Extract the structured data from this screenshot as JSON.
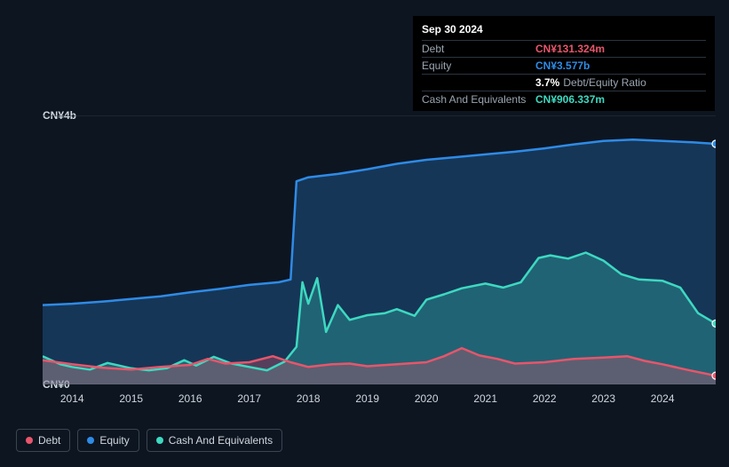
{
  "tooltip": {
    "date": "Sep 30 2024",
    "rows": [
      {
        "label": "Debt",
        "value": "CN¥131.324m",
        "color": "#e8556b"
      },
      {
        "label": "Equity",
        "value": "CN¥3.577b",
        "color": "#2e8be6"
      },
      {
        "label": "",
        "value": "3.7%",
        "note": "Debt/Equity Ratio",
        "color": "#ffffff"
      },
      {
        "label": "Cash And Equivalents",
        "value": "CN¥906.337m",
        "color": "#3dd9c1"
      }
    ]
  },
  "chart": {
    "type": "area",
    "background": "#0d1521",
    "grid_color": "#2a3540",
    "label_color": "#cfd6dd",
    "label_fontsize": 12,
    "y_labels": [
      {
        "text": "CN¥4b",
        "value": 4000
      },
      {
        "text": "CN¥0",
        "value": 0
      }
    ],
    "ylim": [
      0,
      4000
    ],
    "x_years": [
      2014,
      2015,
      2016,
      2017,
      2018,
      2019,
      2020,
      2021,
      2022,
      2023,
      2024
    ],
    "x_range": [
      2013.5,
      2024.9
    ],
    "series": [
      {
        "name": "Equity",
        "color": "#2e8be6",
        "fill": "rgba(46,139,230,0.28)",
        "line_width": 2.5,
        "points": [
          [
            2013.5,
            1180
          ],
          [
            2014,
            1200
          ],
          [
            2014.5,
            1230
          ],
          [
            2015,
            1270
          ],
          [
            2015.5,
            1310
          ],
          [
            2016,
            1370
          ],
          [
            2016.5,
            1420
          ],
          [
            2017,
            1480
          ],
          [
            2017.5,
            1520
          ],
          [
            2017.7,
            1560
          ],
          [
            2017.8,
            3020
          ],
          [
            2018,
            3080
          ],
          [
            2018.5,
            3130
          ],
          [
            2019,
            3200
          ],
          [
            2019.5,
            3280
          ],
          [
            2020,
            3340
          ],
          [
            2020.5,
            3380
          ],
          [
            2021,
            3420
          ],
          [
            2021.5,
            3460
          ],
          [
            2022,
            3510
          ],
          [
            2022.5,
            3570
          ],
          [
            2023,
            3620
          ],
          [
            2023.5,
            3640
          ],
          [
            2024,
            3620
          ],
          [
            2024.5,
            3600
          ],
          [
            2024.9,
            3577
          ]
        ]
      },
      {
        "name": "Cash And Equivalents",
        "color": "#3dd9c1",
        "fill": "rgba(61,217,193,0.28)",
        "line_width": 2.5,
        "points": [
          [
            2013.5,
            420
          ],
          [
            2013.8,
            300
          ],
          [
            2014,
            260
          ],
          [
            2014.3,
            220
          ],
          [
            2014.6,
            320
          ],
          [
            2015,
            240
          ],
          [
            2015.3,
            210
          ],
          [
            2015.6,
            240
          ],
          [
            2015.9,
            360
          ],
          [
            2016.1,
            280
          ],
          [
            2016.4,
            410
          ],
          [
            2016.7,
            310
          ],
          [
            2017,
            260
          ],
          [
            2017.3,
            210
          ],
          [
            2017.6,
            340
          ],
          [
            2017.8,
            560
          ],
          [
            2017.9,
            1520
          ],
          [
            2018,
            1200
          ],
          [
            2018.15,
            1580
          ],
          [
            2018.3,
            780
          ],
          [
            2018.5,
            1180
          ],
          [
            2018.7,
            960
          ],
          [
            2019,
            1030
          ],
          [
            2019.3,
            1060
          ],
          [
            2019.5,
            1120
          ],
          [
            2019.8,
            1020
          ],
          [
            2020,
            1260
          ],
          [
            2020.3,
            1340
          ],
          [
            2020.6,
            1430
          ],
          [
            2021,
            1500
          ],
          [
            2021.3,
            1440
          ],
          [
            2021.6,
            1520
          ],
          [
            2021.9,
            1880
          ],
          [
            2022.1,
            1920
          ],
          [
            2022.4,
            1870
          ],
          [
            2022.7,
            1960
          ],
          [
            2023,
            1840
          ],
          [
            2023.3,
            1640
          ],
          [
            2023.6,
            1560
          ],
          [
            2024,
            1540
          ],
          [
            2024.3,
            1440
          ],
          [
            2024.6,
            1060
          ],
          [
            2024.9,
            906
          ]
        ]
      },
      {
        "name": "Debt",
        "color": "#e8556b",
        "fill": "rgba(232,85,107,0.30)",
        "line_width": 2.5,
        "points": [
          [
            2013.5,
            360
          ],
          [
            2014,
            300
          ],
          [
            2014.5,
            250
          ],
          [
            2015,
            220
          ],
          [
            2015.5,
            260
          ],
          [
            2016,
            290
          ],
          [
            2016.3,
            380
          ],
          [
            2016.6,
            310
          ],
          [
            2017,
            330
          ],
          [
            2017.4,
            420
          ],
          [
            2017.7,
            330
          ],
          [
            2018,
            260
          ],
          [
            2018.4,
            300
          ],
          [
            2018.7,
            310
          ],
          [
            2019,
            270
          ],
          [
            2019.5,
            300
          ],
          [
            2020,
            330
          ],
          [
            2020.3,
            420
          ],
          [
            2020.6,
            540
          ],
          [
            2020.9,
            430
          ],
          [
            2021.2,
            380
          ],
          [
            2021.5,
            310
          ],
          [
            2022,
            330
          ],
          [
            2022.5,
            380
          ],
          [
            2023,
            400
          ],
          [
            2023.4,
            420
          ],
          [
            2023.7,
            350
          ],
          [
            2024,
            300
          ],
          [
            2024.4,
            220
          ],
          [
            2024.9,
            131
          ]
        ]
      }
    ],
    "end_markers": [
      {
        "color": "#2e8be6",
        "y": 3577
      },
      {
        "color": "#3dd9c1",
        "y": 906
      },
      {
        "color": "#e8556b",
        "y": 131
      }
    ]
  },
  "legend": [
    {
      "label": "Debt",
      "color": "#e8556b"
    },
    {
      "label": "Equity",
      "color": "#2e8be6"
    },
    {
      "label": "Cash And Equivalents",
      "color": "#3dd9c1"
    }
  ]
}
